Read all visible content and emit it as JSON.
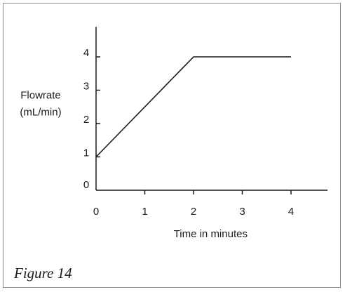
{
  "caption": "Figure 14",
  "chart_data": {
    "type": "line",
    "title": "",
    "xlabel": "Time in minutes",
    "ylabel_lines": [
      "Flowrate",
      "(mL/min)"
    ],
    "x_ticks": [
      0,
      1,
      2,
      3,
      4
    ],
    "y_ticks": [
      0,
      1,
      2,
      3,
      4
    ],
    "xlim": [
      0,
      4.75
    ],
    "ylim": [
      0,
      4.9
    ],
    "grid": false,
    "series": [
      {
        "x": [
          0,
          2,
          4
        ],
        "y": [
          1,
          4,
          4
        ]
      }
    ]
  }
}
